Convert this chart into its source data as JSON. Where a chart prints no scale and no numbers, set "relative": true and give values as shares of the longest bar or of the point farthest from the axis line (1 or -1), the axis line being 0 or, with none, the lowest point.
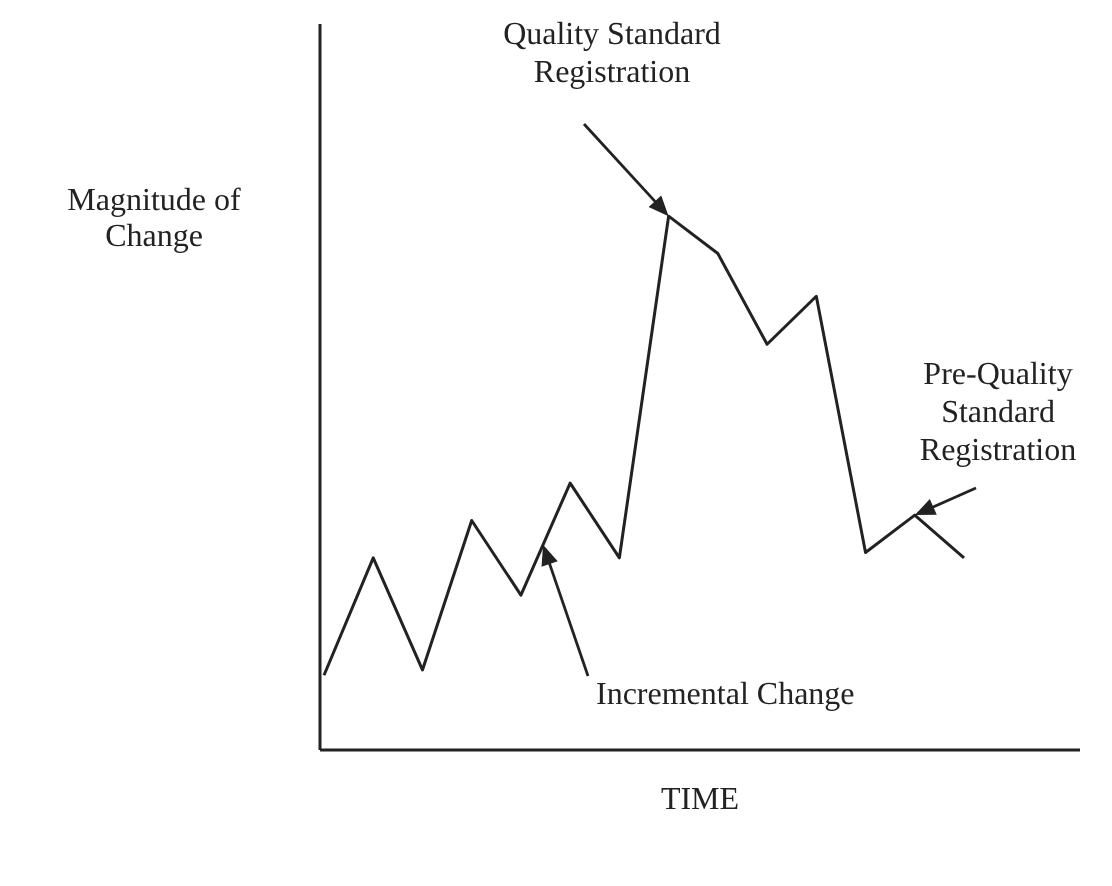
{
  "chart_data": {
    "type": "line",
    "relative": true,
    "xlabel": "TIME",
    "ylabel": "Magnitude of Change",
    "marker": "none",
    "line_style": "solid",
    "categories": [
      null,
      null,
      null,
      null,
      null,
      null,
      null,
      null,
      null,
      null,
      null,
      null,
      null,
      null
    ],
    "series": [
      {
        "color": "#222222",
        "values": [
          0.14,
          0.36,
          0.15,
          0.43,
          0.29,
          0.5,
          0.36,
          1,
          0.93,
          0.76,
          0.85,
          0.37,
          0.44,
          0.36
        ]
      }
    ],
    "annotations": [
      "Quality Standard Registration",
      "Incremental Change",
      "Pre-Quality Standard Registration"
    ]
  }
}
